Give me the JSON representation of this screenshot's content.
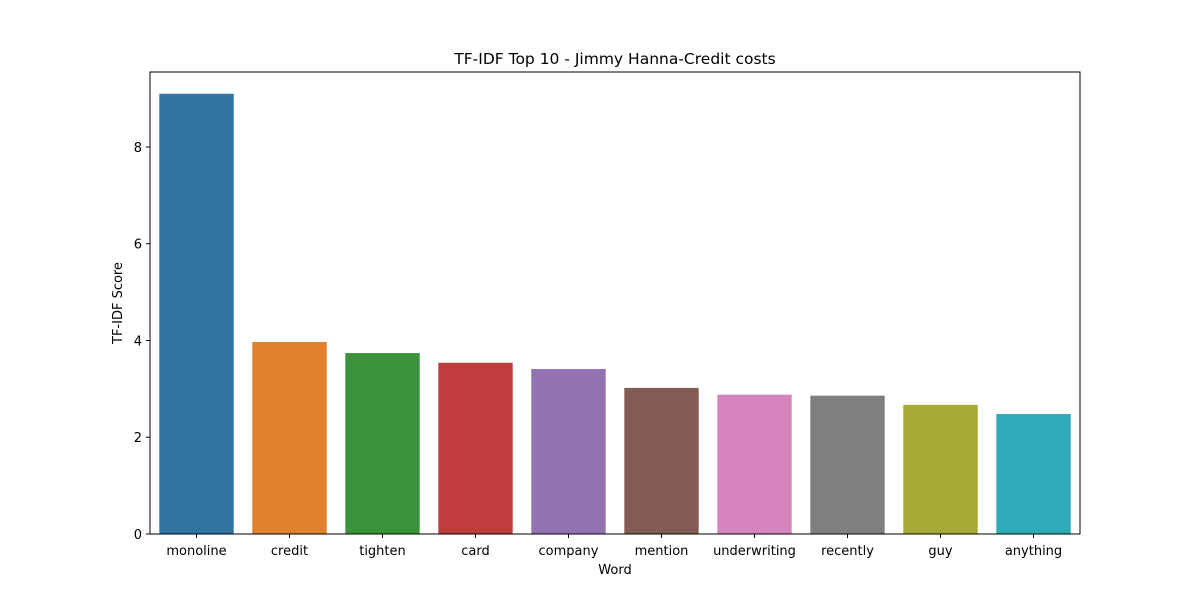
{
  "chart_data": {
    "type": "bar",
    "title": "TF-IDF Top 10 - Jimmy Hanna-Credit costs",
    "xlabel": "Word",
    "ylabel": "TF-IDF Score",
    "categories": [
      "monoline",
      "credit",
      "tighten",
      "card",
      "company",
      "mention",
      "underwriting",
      "recently",
      "guy",
      "anything"
    ],
    "values": [
      9.1,
      3.97,
      3.74,
      3.54,
      3.41,
      3.02,
      2.88,
      2.86,
      2.67,
      2.48
    ],
    "colors": [
      "#3274a1",
      "#e1812c",
      "#3a923a",
      "#c03d3e",
      "#9372b2",
      "#845b53",
      "#d684bd",
      "#7f7f7f",
      "#a9aa35",
      "#2eabb8"
    ],
    "yticks": [
      0,
      2,
      4,
      6,
      8
    ],
    "ylim": [
      0,
      9.55
    ],
    "grid": false,
    "legend": "none"
  }
}
